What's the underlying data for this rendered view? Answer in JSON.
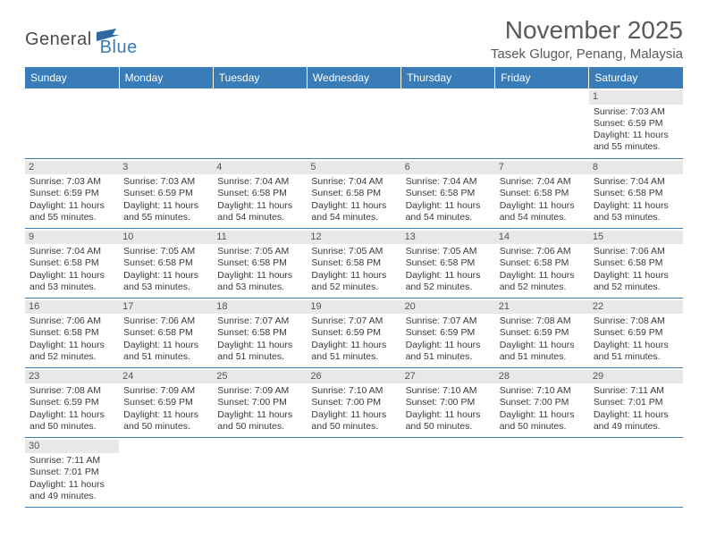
{
  "logo": {
    "main": "General",
    "sub": "Blue"
  },
  "title": "November 2025",
  "location": "Tasek Glugor, Penang, Malaysia",
  "day_headers": [
    "Sunday",
    "Monday",
    "Tuesday",
    "Wednesday",
    "Thursday",
    "Friday",
    "Saturday"
  ],
  "colors": {
    "header_bg": "#3a7cb8",
    "header_fg": "#ffffff",
    "border": "#3a7cb8",
    "daynum_bg": "#e8e8e8",
    "text": "#3a3a3a"
  },
  "weeks": [
    [
      null,
      null,
      null,
      null,
      null,
      null,
      {
        "n": "1",
        "rise": "Sunrise: 7:03 AM",
        "set": "Sunset: 6:59 PM",
        "d1": "Daylight: 11 hours",
        "d2": "and 55 minutes."
      }
    ],
    [
      {
        "n": "2",
        "rise": "Sunrise: 7:03 AM",
        "set": "Sunset: 6:59 PM",
        "d1": "Daylight: 11 hours",
        "d2": "and 55 minutes."
      },
      {
        "n": "3",
        "rise": "Sunrise: 7:03 AM",
        "set": "Sunset: 6:59 PM",
        "d1": "Daylight: 11 hours",
        "d2": "and 55 minutes."
      },
      {
        "n": "4",
        "rise": "Sunrise: 7:04 AM",
        "set": "Sunset: 6:58 PM",
        "d1": "Daylight: 11 hours",
        "d2": "and 54 minutes."
      },
      {
        "n": "5",
        "rise": "Sunrise: 7:04 AM",
        "set": "Sunset: 6:58 PM",
        "d1": "Daylight: 11 hours",
        "d2": "and 54 minutes."
      },
      {
        "n": "6",
        "rise": "Sunrise: 7:04 AM",
        "set": "Sunset: 6:58 PM",
        "d1": "Daylight: 11 hours",
        "d2": "and 54 minutes."
      },
      {
        "n": "7",
        "rise": "Sunrise: 7:04 AM",
        "set": "Sunset: 6:58 PM",
        "d1": "Daylight: 11 hours",
        "d2": "and 54 minutes."
      },
      {
        "n": "8",
        "rise": "Sunrise: 7:04 AM",
        "set": "Sunset: 6:58 PM",
        "d1": "Daylight: 11 hours",
        "d2": "and 53 minutes."
      }
    ],
    [
      {
        "n": "9",
        "rise": "Sunrise: 7:04 AM",
        "set": "Sunset: 6:58 PM",
        "d1": "Daylight: 11 hours",
        "d2": "and 53 minutes."
      },
      {
        "n": "10",
        "rise": "Sunrise: 7:05 AM",
        "set": "Sunset: 6:58 PM",
        "d1": "Daylight: 11 hours",
        "d2": "and 53 minutes."
      },
      {
        "n": "11",
        "rise": "Sunrise: 7:05 AM",
        "set": "Sunset: 6:58 PM",
        "d1": "Daylight: 11 hours",
        "d2": "and 53 minutes."
      },
      {
        "n": "12",
        "rise": "Sunrise: 7:05 AM",
        "set": "Sunset: 6:58 PM",
        "d1": "Daylight: 11 hours",
        "d2": "and 52 minutes."
      },
      {
        "n": "13",
        "rise": "Sunrise: 7:05 AM",
        "set": "Sunset: 6:58 PM",
        "d1": "Daylight: 11 hours",
        "d2": "and 52 minutes."
      },
      {
        "n": "14",
        "rise": "Sunrise: 7:06 AM",
        "set": "Sunset: 6:58 PM",
        "d1": "Daylight: 11 hours",
        "d2": "and 52 minutes."
      },
      {
        "n": "15",
        "rise": "Sunrise: 7:06 AM",
        "set": "Sunset: 6:58 PM",
        "d1": "Daylight: 11 hours",
        "d2": "and 52 minutes."
      }
    ],
    [
      {
        "n": "16",
        "rise": "Sunrise: 7:06 AM",
        "set": "Sunset: 6:58 PM",
        "d1": "Daylight: 11 hours",
        "d2": "and 52 minutes."
      },
      {
        "n": "17",
        "rise": "Sunrise: 7:06 AM",
        "set": "Sunset: 6:58 PM",
        "d1": "Daylight: 11 hours",
        "d2": "and 51 minutes."
      },
      {
        "n": "18",
        "rise": "Sunrise: 7:07 AM",
        "set": "Sunset: 6:58 PM",
        "d1": "Daylight: 11 hours",
        "d2": "and 51 minutes."
      },
      {
        "n": "19",
        "rise": "Sunrise: 7:07 AM",
        "set": "Sunset: 6:59 PM",
        "d1": "Daylight: 11 hours",
        "d2": "and 51 minutes."
      },
      {
        "n": "20",
        "rise": "Sunrise: 7:07 AM",
        "set": "Sunset: 6:59 PM",
        "d1": "Daylight: 11 hours",
        "d2": "and 51 minutes."
      },
      {
        "n": "21",
        "rise": "Sunrise: 7:08 AM",
        "set": "Sunset: 6:59 PM",
        "d1": "Daylight: 11 hours",
        "d2": "and 51 minutes."
      },
      {
        "n": "22",
        "rise": "Sunrise: 7:08 AM",
        "set": "Sunset: 6:59 PM",
        "d1": "Daylight: 11 hours",
        "d2": "and 51 minutes."
      }
    ],
    [
      {
        "n": "23",
        "rise": "Sunrise: 7:08 AM",
        "set": "Sunset: 6:59 PM",
        "d1": "Daylight: 11 hours",
        "d2": "and 50 minutes."
      },
      {
        "n": "24",
        "rise": "Sunrise: 7:09 AM",
        "set": "Sunset: 6:59 PM",
        "d1": "Daylight: 11 hours",
        "d2": "and 50 minutes."
      },
      {
        "n": "25",
        "rise": "Sunrise: 7:09 AM",
        "set": "Sunset: 7:00 PM",
        "d1": "Daylight: 11 hours",
        "d2": "and 50 minutes."
      },
      {
        "n": "26",
        "rise": "Sunrise: 7:10 AM",
        "set": "Sunset: 7:00 PM",
        "d1": "Daylight: 11 hours",
        "d2": "and 50 minutes."
      },
      {
        "n": "27",
        "rise": "Sunrise: 7:10 AM",
        "set": "Sunset: 7:00 PM",
        "d1": "Daylight: 11 hours",
        "d2": "and 50 minutes."
      },
      {
        "n": "28",
        "rise": "Sunrise: 7:10 AM",
        "set": "Sunset: 7:00 PM",
        "d1": "Daylight: 11 hours",
        "d2": "and 50 minutes."
      },
      {
        "n": "29",
        "rise": "Sunrise: 7:11 AM",
        "set": "Sunset: 7:01 PM",
        "d1": "Daylight: 11 hours",
        "d2": "and 49 minutes."
      }
    ],
    [
      {
        "n": "30",
        "rise": "Sunrise: 7:11 AM",
        "set": "Sunset: 7:01 PM",
        "d1": "Daylight: 11 hours",
        "d2": "and 49 minutes."
      },
      null,
      null,
      null,
      null,
      null,
      null
    ]
  ]
}
